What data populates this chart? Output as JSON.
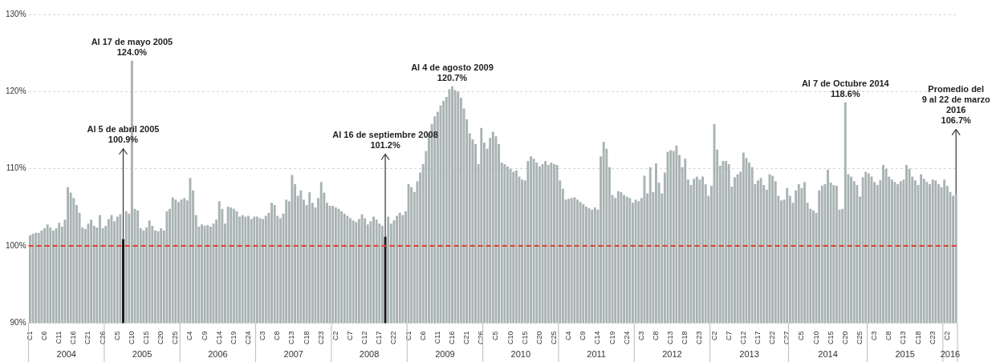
{
  "chart_data": {
    "type": "bar",
    "categories": [
      "C1",
      null,
      null,
      null,
      null,
      "C6",
      null,
      null,
      null,
      null,
      "C11",
      null,
      null,
      null,
      null,
      "C16",
      null,
      null,
      null,
      null,
      "C21",
      null,
      null,
      null,
      null,
      "C26",
      null,
      null,
      null,
      null,
      "C5",
      null,
      null,
      null,
      null,
      "C10",
      null,
      null,
      null,
      null,
      "C15",
      null,
      null,
      null,
      null,
      "C20",
      null,
      null,
      null,
      null,
      "C25",
      null,
      null,
      null,
      null,
      "C4",
      null,
      null,
      null,
      null,
      "C9",
      null,
      null,
      null,
      null,
      "C14",
      null,
      null,
      null,
      null,
      "C19",
      null,
      null,
      null,
      null,
      "C24",
      null,
      null,
      null,
      null,
      "C3",
      null,
      null,
      null,
      null,
      "C8",
      null,
      null,
      null,
      null,
      "C13",
      null,
      null,
      null,
      null,
      "C18",
      null,
      null,
      null,
      null,
      "C23",
      null,
      null,
      null,
      null,
      "C2",
      null,
      null,
      null,
      null,
      "C7",
      null,
      null,
      null,
      null,
      "C12",
      null,
      null,
      null,
      null,
      "C17",
      null,
      null,
      null,
      null,
      "C22",
      null,
      null,
      null,
      null,
      "C1",
      null,
      null,
      null,
      null,
      "C6",
      null,
      null,
      null,
      null,
      "C11",
      null,
      null,
      null,
      null,
      "C16",
      null,
      null,
      null,
      null,
      "C21",
      null,
      null,
      null,
      null,
      "C26",
      null,
      null,
      null,
      null,
      "C5",
      null,
      null,
      null,
      null,
      "C10",
      null,
      null,
      null,
      null,
      "C15",
      null,
      null,
      null,
      null,
      "C20",
      null,
      null,
      null,
      null,
      "C25",
      null,
      null,
      null,
      null,
      "C4",
      null,
      null,
      null,
      null,
      "C9",
      null,
      null,
      null,
      null,
      "C14",
      null,
      null,
      null,
      null,
      "C19",
      null,
      null,
      null,
      null,
      "C24",
      null,
      null,
      null,
      null,
      "C3",
      null,
      null,
      null,
      null,
      "C8",
      null,
      null,
      null,
      null,
      "C13",
      null,
      null,
      null,
      null,
      "C18",
      null,
      null,
      null,
      null,
      "C23",
      null,
      null,
      null,
      null,
      "C2",
      null,
      null,
      null,
      null,
      "C7",
      null,
      null,
      null,
      null,
      "C12",
      null,
      null,
      null,
      null,
      "C17",
      null,
      null,
      null,
      null,
      "C22",
      null,
      null,
      null,
      null,
      "C27",
      null,
      null,
      null,
      null,
      "C5",
      null,
      null,
      null,
      null,
      "C10",
      null,
      null,
      null,
      null,
      "C15",
      null,
      null,
      null,
      null,
      "C20",
      null,
      null,
      null,
      null,
      "C25",
      null,
      null,
      null,
      null,
      "C3",
      null,
      null,
      null,
      null,
      "C8",
      null,
      null,
      null,
      null,
      "C13",
      null,
      null,
      null,
      null,
      "C18",
      null,
      null,
      null,
      null,
      "C23",
      null,
      null,
      null,
      null,
      "C2",
      null,
      null,
      null
    ],
    "values": [
      101.4,
      101.6,
      101.7,
      101.7,
      102.0,
      102.3,
      102.8,
      102.4,
      102.0,
      102.3,
      103.0,
      102.5,
      103.4,
      107.6,
      106.9,
      106.2,
      105.3,
      104.3,
      102.4,
      102.2,
      102.9,
      103.4,
      102.6,
      102.4,
      104.0,
      102.3,
      102.6,
      103.5,
      104.0,
      103.2,
      103.8,
      104.1,
      100.9,
      104.5,
      104.2,
      124.0,
      104.8,
      104.6,
      102.3,
      102.0,
      102.4,
      103.3,
      102.6,
      102.0,
      101.9,
      102.3,
      102.0,
      104.5,
      104.8,
      106.3,
      106.0,
      105.7,
      106.0,
      106.2,
      105.9,
      108.8,
      107.2,
      104.0,
      102.5,
      102.8,
      102.6,
      102.7,
      102.5,
      102.9,
      103.4,
      105.8,
      104.8,
      102.9,
      105.1,
      105.0,
      104.8,
      104.5,
      103.8,
      104.0,
      103.8,
      103.9,
      103.5,
      103.8,
      103.8,
      103.6,
      103.5,
      103.9,
      104.3,
      105.6,
      105.3,
      103.9,
      103.6,
      104.2,
      106.0,
      105.8,
      109.2,
      108.0,
      106.5,
      107.2,
      106.0,
      105.3,
      107.0,
      105.6,
      105.0,
      106.2,
      108.3,
      106.9,
      105.6,
      105.2,
      105.2,
      105.0,
      104.8,
      104.5,
      104.2,
      103.9,
      103.6,
      103.3,
      103.1,
      103.5,
      104.1,
      103.6,
      102.8,
      103.2,
      103.8,
      103.4,
      102.9,
      102.6,
      101.2,
      103.8,
      102.9,
      103.3,
      103.9,
      104.3,
      104.0,
      104.5,
      108.0,
      107.6,
      107.0,
      108.4,
      109.5,
      110.6,
      112.3,
      114.6,
      115.8,
      116.8,
      117.4,
      118.2,
      118.8,
      119.3,
      120.3,
      120.7,
      120.2,
      120.0,
      119.2,
      117.8,
      116.4,
      114.6,
      113.8,
      113.2,
      110.6,
      115.3,
      113.4,
      112.6,
      114.0,
      114.8,
      114.2,
      113.2,
      110.8,
      110.6,
      110.3,
      110.0,
      109.6,
      109.8,
      109.0,
      108.6,
      108.5,
      111.0,
      111.6,
      111.3,
      110.8,
      110.3,
      110.6,
      111.0,
      110.5,
      110.8,
      110.6,
      110.5,
      108.5,
      107.4,
      106.0,
      106.1,
      106.2,
      106.3,
      106.0,
      105.7,
      105.4,
      105.1,
      104.9,
      104.7,
      105.0,
      104.7,
      111.6,
      113.5,
      112.6,
      110.2,
      106.6,
      106.2,
      107.1,
      107.0,
      106.6,
      106.4,
      106.2,
      105.6,
      106.0,
      105.8,
      106.2,
      109.1,
      106.8,
      110.2,
      107.0,
      110.7,
      108.2,
      106.8,
      109.5,
      112.2,
      112.4,
      112.3,
      113.0,
      111.8,
      110.2,
      111.3,
      108.6,
      107.9,
      108.7,
      109.0,
      108.6,
      109.0,
      108.0,
      106.5,
      107.8,
      115.8,
      112.5,
      110.4,
      111.0,
      111.0,
      110.6,
      107.7,
      108.9,
      109.3,
      109.6,
      112.1,
      111.4,
      110.8,
      110.2,
      108.0,
      108.5,
      108.8,
      107.9,
      107.3,
      109.3,
      109.1,
      108.4,
      106.5,
      105.9,
      106.0,
      107.5,
      106.5,
      105.6,
      107.2,
      108.0,
      107.5,
      108.3,
      105.6,
      104.8,
      104.6,
      104.3,
      107.2,
      107.8,
      108.0,
      109.9,
      108.2,
      107.9,
      107.8,
      104.7,
      104.8,
      118.6,
      109.3,
      109.0,
      108.4,
      107.9,
      106.4,
      108.9,
      109.6,
      109.4,
      109.0,
      108.3,
      107.9,
      108.5,
      110.5,
      110.0,
      109.0,
      108.6,
      108.3,
      108.0,
      108.4,
      108.6,
      110.5,
      110.0,
      109.0,
      108.5,
      107.9,
      109.3,
      108.7,
      108.3,
      108.0,
      108.6,
      108.5,
      108.0,
      107.6,
      108.6,
      107.8,
      107.0,
      106.5,
      106.7
    ],
    "colors": [
      "#a9b3b3",
      "#a9b3b3",
      "#a9b3b3",
      "#a9b3b3",
      "#a9b3b3",
      "#a9b3b3",
      "#a9b3b3",
      "#a9b3b3",
      "#a9b3b3",
      "#a9b3b3",
      "#a9b3b3",
      "#a9b3b3",
      "#a9b3b3",
      "#a9b3b3",
      "#a9b3b3",
      "#a9b3b3",
      "#a9b3b3",
      "#a9b3b3",
      "#a9b3b3",
      "#a9b3b3",
      "#a9b3b3",
      "#a9b3b3",
      "#a9b3b3",
      "#a9b3b3",
      "#a9b3b3",
      "#a9b3b3",
      "#a9b3b3",
      "#a9b3b3",
      "#a9b3b3",
      "#a9b3b3",
      "#a9b3b3",
      "#a9b3b3",
      "#141414",
      "#a9b3b3",
      "#a9b3b3",
      "#a9b3b3",
      "#a9b3b3",
      "#a9b3b3",
      "#a9b3b3",
      "#a9b3b3",
      "#a9b3b3",
      "#a9b3b3",
      "#a9b3b3",
      "#a9b3b3",
      "#a9b3b3",
      "#a9b3b3",
      "#a9b3b3",
      "#a9b3b3",
      "#a9b3b3",
      "#a9b3b3",
      "#a9b3b3",
      "#a9b3b3",
      "#a9b3b3",
      "#a9b3b3",
      "#a9b3b3",
      "#a9b3b3",
      "#a9b3b3",
      "#a9b3b3",
      "#a9b3b3",
      "#a9b3b3",
      "#a9b3b3",
      "#a9b3b3",
      "#a9b3b3",
      "#a9b3b3",
      "#a9b3b3",
      "#a9b3b3",
      "#a9b3b3",
      "#a9b3b3",
      "#a9b3b3",
      "#a9b3b3",
      "#a9b3b3",
      "#a9b3b3",
      "#a9b3b3",
      "#a9b3b3",
      "#a9b3b3",
      "#a9b3b3",
      "#a9b3b3",
      "#a9b3b3",
      "#a9b3b3",
      "#a9b3b3",
      "#a9b3b3",
      "#a9b3b3",
      "#a9b3b3",
      "#a9b3b3",
      "#a9b3b3",
      "#a9b3b3",
      "#a9b3b3",
      "#a9b3b3",
      "#a9b3b3",
      "#a9b3b3",
      "#a9b3b3",
      "#a9b3b3",
      "#a9b3b3",
      "#a9b3b3",
      "#a9b3b3",
      "#a9b3b3",
      "#a9b3b3",
      "#a9b3b3",
      "#a9b3b3",
      "#a9b3b3",
      "#a9b3b3",
      "#a9b3b3",
      "#a9b3b3",
      "#a9b3b3",
      "#a9b3b3",
      "#a9b3b3",
      "#a9b3b3",
      "#a9b3b3",
      "#a9b3b3",
      "#a9b3b3",
      "#a9b3b3",
      "#a9b3b3",
      "#a9b3b3",
      "#a9b3b3",
      "#a9b3b3",
      "#a9b3b3",
      "#a9b3b3",
      "#a9b3b3",
      "#a9b3b3",
      "#a9b3b3",
      "#a9b3b3",
      "#a9b3b3",
      "#141414",
      "#a9b3b3",
      "#a9b3b3",
      "#a9b3b3",
      "#a9b3b3",
      "#a9b3b3",
      "#a9b3b3",
      "#a9b3b3",
      "#a9b3b3",
      "#a9b3b3",
      "#a9b3b3",
      "#a9b3b3",
      "#a9b3b3",
      "#a9b3b3",
      "#a9b3b3",
      "#a9b3b3",
      "#a9b3b3",
      "#a9b3b3",
      "#a9b3b3",
      "#a9b3b3",
      "#a9b3b3",
      "#a9b3b3",
      "#a9b3b3",
      "#a9b3b3",
      "#a9b3b3",
      "#a9b3b3",
      "#a9b3b3",
      "#a9b3b3",
      "#a9b3b3",
      "#a9b3b3",
      "#a9b3b3",
      "#a9b3b3",
      "#a9b3b3",
      "#a9b3b3",
      "#a9b3b3",
      "#a9b3b3",
      "#a9b3b3",
      "#a9b3b3",
      "#a9b3b3",
      "#a9b3b3",
      "#a9b3b3",
      "#a9b3b3",
      "#a9b3b3",
      "#a9b3b3",
      "#a9b3b3",
      "#a9b3b3",
      "#a9b3b3",
      "#a9b3b3",
      "#a9b3b3",
      "#a9b3b3",
      "#a9b3b3",
      "#a9b3b3",
      "#a9b3b3",
      "#a9b3b3",
      "#a9b3b3",
      "#a9b3b3",
      "#a9b3b3",
      "#a9b3b3",
      "#a9b3b3",
      "#a9b3b3",
      "#a9b3b3",
      "#a9b3b3",
      "#a9b3b3",
      "#a9b3b3",
      "#a9b3b3",
      "#a9b3b3",
      "#a9b3b3",
      "#a9b3b3",
      "#a9b3b3",
      "#a9b3b3",
      "#a9b3b3",
      "#a9b3b3",
      "#a9b3b3",
      "#a9b3b3",
      "#a9b3b3",
      "#a9b3b3",
      "#a9b3b3",
      "#a9b3b3",
      "#a9b3b3",
      "#a9b3b3",
      "#a9b3b3",
      "#a9b3b3",
      "#a9b3b3",
      "#a9b3b3",
      "#a9b3b3",
      "#a9b3b3",
      "#a9b3b3",
      "#a9b3b3",
      "#a9b3b3",
      "#a9b3b3",
      "#a9b3b3",
      "#a9b3b3",
      "#a9b3b3",
      "#a9b3b3",
      "#a9b3b3",
      "#a9b3b3",
      "#a9b3b3",
      "#a9b3b3",
      "#a9b3b3",
      "#a9b3b3",
      "#a9b3b3",
      "#a9b3b3",
      "#a9b3b3",
      "#a9b3b3",
      "#a9b3b3",
      "#a9b3b3",
      "#a9b3b3",
      "#a9b3b3",
      "#a9b3b3",
      "#a9b3b3",
      "#a9b3b3",
      "#a9b3b3",
      "#a9b3b3",
      "#a9b3b3",
      "#a9b3b3",
      "#a9b3b3",
      "#a9b3b3",
      "#a9b3b3",
      "#a9b3b3",
      "#a9b3b3",
      "#a9b3b3",
      "#a9b3b3",
      "#a9b3b3",
      "#a9b3b3",
      "#a9b3b3",
      "#a9b3b3",
      "#a9b3b3",
      "#a9b3b3",
      "#a9b3b3",
      "#a9b3b3",
      "#a9b3b3",
      "#a9b3b3",
      "#a9b3b3",
      "#a9b3b3",
      "#a9b3b3",
      "#a9b3b3",
      "#a9b3b3",
      "#a9b3b3",
      "#a9b3b3",
      "#a9b3b3",
      "#a9b3b3",
      "#a9b3b3",
      "#a9b3b3",
      "#a9b3b3",
      "#a9b3b3",
      "#a9b3b3",
      "#a9b3b3",
      "#a9b3b3",
      "#a9b3b3",
      "#a9b3b3",
      "#a9b3b3",
      "#a9b3b3",
      "#a9b3b3",
      "#a9b3b3",
      "#a9b3b3",
      "#a9b3b3",
      "#a9b3b3",
      "#a9b3b3",
      "#a9b3b3",
      "#a9b3b3",
      "#a9b3b3",
      "#a9b3b3",
      "#a9b3b3",
      "#a9b3b3",
      "#a9b3b3",
      "#a9b3b3",
      "#a9b3b3",
      "#a9b3b3",
      "#a9b3b3",
      "#a9b3b3",
      "#a9b3b3",
      "#a9b3b3",
      "#a9b3b3",
      "#a9b3b3",
      "#a9b3b3",
      "#a9b3b3",
      "#a9b3b3",
      "#a9b3b3",
      "#a9b3b3",
      "#a9b3b3",
      "#a9b3b3",
      "#a9b3b3",
      "#a9b3b3",
      "#a9b3b3",
      "#a9b3b3",
      "#a9b3b3",
      "#a9b3b3",
      "#a9b3b3",
      "#a9b3b3",
      "#a9b3b3",
      "#a9b3b3",
      "#a9b3b3",
      "#a9b3b3",
      "#a9b3b3",
      "#a9b3b3",
      "#a9b3b3",
      "#a9b3b3"
    ],
    "value_labels": [
      null,
      null,
      null,
      null,
      null,
      null,
      null,
      null,
      null,
      null,
      null,
      null,
      null,
      null,
      null,
      null,
      null,
      null,
      null,
      null,
      null,
      null,
      null,
      null,
      null,
      null,
      null,
      null,
      null,
      null,
      null,
      null,
      "100.9%",
      null,
      null,
      "124.0%",
      null,
      null,
      null,
      null,
      null,
      null,
      null,
      null,
      null,
      null,
      null,
      null,
      null,
      null,
      null,
      null,
      null,
      null,
      null,
      null,
      null,
      null,
      null,
      null,
      null,
      null,
      null,
      null,
      null,
      null,
      null,
      null,
      null,
      null,
      null,
      null,
      null,
      null,
      null,
      null,
      null,
      null,
      null,
      null,
      null,
      null,
      null,
      null,
      null,
      null,
      null,
      null,
      null,
      null,
      null,
      null,
      null,
      null,
      null,
      null,
      null,
      null,
      null,
      null,
      null,
      null,
      null,
      null,
      null,
      null,
      null,
      null,
      null,
      null,
      null,
      null,
      null,
      null,
      null,
      null,
      null,
      null,
      null,
      null,
      null,
      null,
      "101.2%",
      null,
      null,
      null,
      null,
      null,
      null,
      null,
      null,
      null,
      null,
      null,
      null,
      null,
      null,
      null,
      null,
      null,
      null,
      null,
      null,
      null,
      null,
      "120.7%",
      null,
      null,
      null,
      null,
      null,
      null,
      null,
      null,
      null,
      null,
      null,
      null,
      null,
      null,
      null,
      null,
      null,
      null,
      null,
      null,
      null,
      null,
      null,
      null,
      null,
      null,
      null,
      null,
      null,
      null,
      null,
      null,
      null,
      null,
      null,
      null,
      null,
      null,
      null,
      null,
      null,
      null,
      null,
      null,
      null,
      null,
      null,
      null,
      null,
      null,
      null,
      null,
      null,
      null,
      null,
      null,
      null,
      null,
      null,
      null,
      null,
      null,
      null,
      null,
      null,
      null,
      null,
      null,
      null,
      null,
      null,
      null,
      null,
      null,
      null,
      null,
      null,
      null,
      null,
      null,
      null,
      null,
      null,
      null,
      null,
      null,
      null,
      null,
      null,
      null,
      null,
      null,
      null,
      null,
      null,
      null,
      null,
      null,
      null,
      null,
      null,
      null,
      null,
      null,
      null,
      null,
      null,
      null,
      null,
      null,
      null,
      null,
      null,
      null,
      null,
      null,
      null,
      null,
      null,
      null,
      null,
      null,
      null,
      null,
      null,
      null,
      null,
      null,
      null,
      null,
      null,
      null,
      null,
      null,
      "118.6%",
      null,
      null,
      null,
      null,
      null,
      null,
      null,
      null,
      null,
      null,
      null,
      null,
      null,
      null,
      null,
      null,
      null,
      null,
      null,
      null,
      null,
      null,
      null,
      null,
      null,
      null,
      null,
      null,
      null,
      null,
      null,
      null,
      null,
      null,
      null,
      null,
      null,
      "106.7%"
    ],
    "annotations": [
      "Al 5 de abril 2005",
      "Al 17 de mayo 2005",
      "Al 16 de septiembre 2008",
      "Al 4 de agosto 2009",
      "Al 7 de Octubre 2014",
      "Promedio del\n9 al 22 de marzo\n2016",
      "2004",
      "2005",
      "2006",
      "2007",
      "2008",
      "2009",
      "2010",
      "2011",
      "2012",
      "2013",
      "2014",
      "2015",
      "2016"
    ],
    "ylim": [
      90,
      130
    ],
    "yticks": [
      {
        "value": 90,
        "label": "90%"
      },
      {
        "value": 100,
        "label": "100%"
      },
      {
        "value": 110,
        "label": "110%"
      },
      {
        "value": 120,
        "label": "120%"
      },
      {
        "value": 130,
        "label": "130%"
      }
    ],
    "grid": "y",
    "ref_lines": [
      {
        "axis": "y",
        "value": 100,
        "color": "#e0402a",
        "line_style": "dashed"
      }
    ]
  }
}
